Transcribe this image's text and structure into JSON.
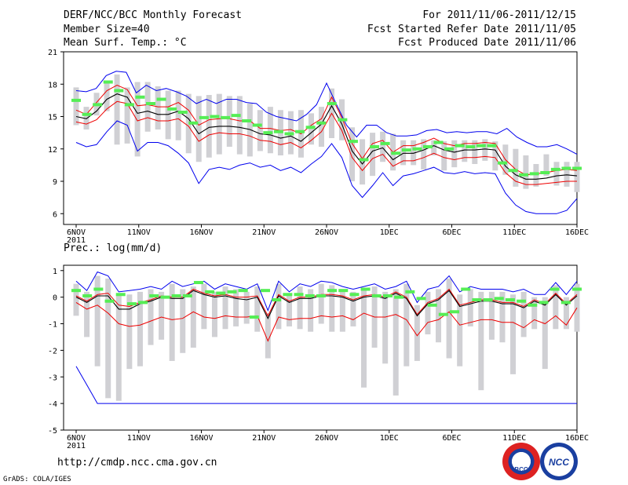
{
  "header": {
    "title": "DERF/NCC/BCC Monthly Forecast",
    "member_size": "Member Size=40",
    "variable": "Mean Surf. Temp.: °C",
    "period": "For 2011/11/06-2011/12/15",
    "started": "Fcst Started Refer Date 2011/11/05",
    "produced": "Fcst Produced Date 2011/11/06"
  },
  "footer": {
    "url": "http://cmdp.ncc.cma.gov.cn",
    "credit": "GrADS: COLA/IGES",
    "logo1_text": "BCC",
    "logo2_text": "NCC"
  },
  "colors": {
    "max": "#0000ee",
    "ensemble_mean": "#000000",
    "spread": "#ee0000",
    "bar": "#d0d0d4",
    "median": "#55ee55"
  },
  "chart_data": [
    {
      "type": "line",
      "title": "Mean Surf. Temp.: °C",
      "ylim": [
        5,
        21
      ],
      "yticks": [
        "6",
        "9",
        "12",
        "15",
        "18",
        "21"
      ],
      "xticks": [
        "6NOV",
        "11NOV",
        "16NOV",
        "21NOV",
        "26NOV",
        "1DEC",
        "6DEC",
        "11DEC",
        "16DEC"
      ],
      "xtick_year": "2011",
      "days": 40,
      "series": [
        {
          "name": "max",
          "color": "#0000ee",
          "values": [
            17.4,
            17.3,
            17.6,
            18.8,
            19.2,
            19.1,
            17.2,
            17.9,
            17.4,
            17.6,
            17.3,
            16.9,
            16.2,
            16.6,
            16.2,
            16.6,
            16.6,
            16.3,
            16.2,
            15.4,
            15.0,
            14.8,
            14.6,
            15.2,
            16.1,
            18.1,
            16.1,
            14.2,
            13.1,
            14.2,
            14.2,
            13.5,
            13.2,
            13.2,
            13.3,
            13.7,
            13.8,
            13.5,
            13.6,
            13.5,
            13.6,
            13.6,
            13.4,
            13.9,
            13.1,
            12.6,
            12.2,
            12.2,
            12.4,
            12.0,
            11.5
          ]
        },
        {
          "name": "upper",
          "color": "#ee0000",
          "values": [
            15.6,
            15.2,
            16.3,
            17.4,
            17.9,
            17.5,
            16.0,
            16.1,
            15.9,
            15.9,
            16.3,
            15.6,
            14.2,
            14.7,
            14.8,
            14.8,
            14.6,
            14.6,
            13.9,
            13.9,
            13.7,
            13.8,
            13.4,
            14.2,
            14.8,
            16.8,
            14.9,
            12.5,
            11.1,
            12.5,
            12.8,
            11.7,
            12.3,
            12.3,
            12.6,
            13.0,
            12.5,
            12.3,
            12.5,
            12.5,
            12.6,
            12.5,
            11.0,
            10.1,
            9.6,
            9.7,
            9.8,
            10.0,
            10.1,
            10.0
          ]
        },
        {
          "name": "ensemble_mean",
          "color": "#000000",
          "values": [
            15.0,
            14.8,
            15.5,
            16.6,
            17.1,
            16.8,
            15.3,
            15.5,
            15.2,
            15.2,
            15.5,
            14.8,
            13.4,
            14.0,
            14.1,
            14.1,
            14.0,
            13.8,
            13.4,
            13.3,
            13.0,
            13.2,
            12.7,
            13.5,
            14.3,
            16.0,
            14.3,
            11.8,
            10.6,
            11.8,
            12.1,
            11.0,
            11.6,
            11.6,
            11.9,
            12.3,
            11.9,
            11.7,
            11.9,
            11.9,
            12.0,
            11.9,
            10.4,
            9.6,
            9.2,
            9.2,
            9.3,
            9.5,
            9.6,
            9.5
          ]
        },
        {
          "name": "lower",
          "color": "#ee0000",
          "values": [
            14.5,
            14.3,
            14.7,
            15.7,
            16.4,
            16.2,
            14.6,
            14.9,
            14.6,
            14.6,
            14.8,
            14.1,
            12.7,
            13.3,
            13.5,
            13.4,
            13.4,
            13.2,
            12.8,
            12.7,
            12.4,
            12.6,
            12.1,
            12.8,
            13.6,
            15.3,
            13.7,
            11.2,
            10.0,
            11.1,
            11.5,
            10.4,
            10.9,
            10.9,
            11.2,
            11.6,
            11.2,
            11.0,
            11.2,
            11.2,
            11.3,
            11.2,
            9.8,
            9.0,
            8.7,
            8.7,
            8.8,
            8.9,
            9.0,
            9.0
          ]
        },
        {
          "name": "min",
          "color": "#0000ee",
          "values": [
            12.6,
            12.2,
            12.4,
            13.6,
            14.6,
            14.2,
            11.8,
            12.6,
            12.6,
            12.3,
            11.6,
            10.7,
            8.8,
            10.1,
            10.3,
            10.1,
            10.5,
            10.7,
            10.3,
            10.5,
            10.0,
            10.3,
            9.8,
            10.6,
            11.3,
            12.5,
            11.2,
            8.6,
            7.5,
            8.6,
            9.8,
            8.6,
            9.5,
            9.7,
            10.0,
            10.3,
            9.8,
            9.7,
            9.9,
            9.7,
            9.8,
            9.7,
            7.9,
            6.8,
            6.2,
            6.0,
            6.0,
            6.0,
            6.3,
            7.4
          ]
        },
        {
          "name": "bar_top",
          "color": "#d0d0d4",
          "values": [
            17.7,
            15.9,
            17.2,
            18.2,
            18.9,
            17.7,
            18.2,
            18.2,
            17.8,
            17.4,
            17.4,
            17.1,
            16.9,
            17.0,
            17.1,
            16.9,
            16.9,
            16.2,
            15.6,
            15.9,
            15.6,
            15.5,
            15.6,
            15.3,
            15.9,
            17.6,
            16.6,
            14.0,
            12.9,
            13.5,
            13.6,
            13.4,
            12.8,
            12.8,
            12.9,
            12.8,
            12.7,
            12.8,
            12.8,
            12.8,
            12.9,
            12.7,
            12.4,
            12.0,
            11.4,
            10.6,
            11.5,
            10.8,
            10.8,
            10.8
          ]
        },
        {
          "name": "bar_bottom",
          "color": "#d0d0d4",
          "values": [
            14.2,
            13.8,
            15.1,
            15.5,
            12.4,
            12.5,
            11.3,
            13.6,
            13.8,
            12.9,
            12.8,
            11.6,
            10.8,
            11.2,
            11.5,
            12.2,
            11.5,
            11.3,
            11.8,
            11.6,
            11.4,
            11.5,
            11.2,
            12.4,
            12.2,
            13.0,
            12.8,
            9.0,
            8.7,
            9.5,
            10.8,
            10.0,
            10.5,
            10.5,
            10.1,
            11.4,
            10.0,
            10.3,
            10.8,
            10.6,
            10.9,
            10.0,
            9.6,
            8.5,
            8.3,
            8.5,
            9.5,
            8.6,
            8.5,
            8.0
          ]
        },
        {
          "name": "median",
          "color": "#55ee55",
          "values": [
            16.5,
            15.2,
            16.1,
            18.2,
            17.4,
            16.1,
            16.8,
            16.2,
            16.6,
            15.7,
            15.4,
            14.4,
            14.9,
            15.0,
            14.9,
            15.1,
            14.6,
            14.2,
            13.5,
            13.6,
            13.4,
            13.6,
            14.0,
            14.4,
            16.2,
            14.7,
            12.7,
            11.0,
            12.2,
            12.5,
            11.6,
            11.9,
            12.0,
            12.2,
            12.6,
            12.0,
            12.3,
            12.2,
            12.3,
            12.3,
            10.7,
            10.0,
            9.6,
            9.7,
            9.8,
            10.1,
            10.2,
            10.2
          ]
        }
      ]
    },
    {
      "type": "line",
      "title": "Prec.: log(mm/d)",
      "ylim": [
        -5,
        1.2
      ],
      "yticks": [
        "-5",
        "-4",
        "-3",
        "-2",
        "-1",
        "0",
        "1"
      ],
      "xticks": [
        "6NOV",
        "11NOV",
        "16NOV",
        "21NOV",
        "26NOV",
        "1DEC",
        "6DEC",
        "11DEC",
        "16DEC"
      ],
      "xtick_year": "2011",
      "days": 40,
      "series": [
        {
          "name": "max",
          "color": "#0000ee",
          "values": [
            0.6,
            0.25,
            0.95,
            0.8,
            0.2,
            0.25,
            0.3,
            0.4,
            0.3,
            0.6,
            0.4,
            0.5,
            0.6,
            0.3,
            0.5,
            0.4,
            0.3,
            0.5,
            -0.5,
            0.6,
            0.2,
            0.5,
            0.4,
            0.6,
            0.55,
            0.4,
            0.3,
            0.4,
            0.5,
            0.3,
            0.4,
            0.6,
            -0.2,
            0.3,
            0.4,
            0.8,
            0.2,
            0.4,
            0.3,
            0.3,
            0.3,
            0.2,
            0.3,
            0.1,
            0.1,
            0.55,
            0.1,
            0.6
          ]
        },
        {
          "name": "upper",
          "color": "#ee0000",
          "values": [
            0.05,
            -0.15,
            0.1,
            0.15,
            -0.3,
            -0.35,
            -0.2,
            -0.1,
            0.05,
            0.0,
            0.0,
            0.3,
            0.15,
            0.05,
            0.1,
            0.0,
            0.0,
            0.05,
            -0.7,
            0.1,
            -0.15,
            0.0,
            0.0,
            0.1,
            0.1,
            0.05,
            -0.1,
            0.05,
            0.1,
            0.0,
            0.2,
            0.0,
            -0.65,
            -0.2,
            -0.05,
            0.3,
            -0.3,
            -0.2,
            -0.1,
            -0.1,
            -0.2,
            -0.2,
            -0.35,
            -0.1,
            -0.25,
            0.15,
            -0.25,
            0.1
          ]
        },
        {
          "name": "ensemble_mean",
          "color": "#000000",
          "values": [
            0.0,
            -0.2,
            0.05,
            0.05,
            -0.45,
            -0.45,
            -0.25,
            -0.15,
            0.0,
            -0.05,
            -0.05,
            0.25,
            0.1,
            0.0,
            0.05,
            -0.05,
            -0.1,
            0.0,
            -0.8,
            0.05,
            -0.2,
            -0.05,
            -0.05,
            0.05,
            0.05,
            0.0,
            -0.15,
            0.0,
            0.05,
            -0.05,
            0.15,
            -0.05,
            -0.7,
            -0.25,
            -0.1,
            0.25,
            -0.35,
            -0.25,
            -0.15,
            -0.15,
            -0.25,
            -0.25,
            -0.4,
            -0.15,
            -0.3,
            0.1,
            -0.3,
            0.05
          ]
        },
        {
          "name": "lower",
          "color": "#ee0000",
          "values": [
            -0.2,
            -0.45,
            -0.3,
            -0.6,
            -1.0,
            -1.1,
            -1.05,
            -0.9,
            -0.75,
            -0.85,
            -0.8,
            -0.55,
            -0.75,
            -0.8,
            -0.7,
            -0.75,
            -0.75,
            -0.7,
            -1.65,
            -0.75,
            -0.85,
            -0.8,
            -0.8,
            -0.7,
            -0.75,
            -0.7,
            -0.85,
            -0.6,
            -0.75,
            -0.75,
            -0.65,
            -0.85,
            -1.45,
            -0.95,
            -0.85,
            -0.55,
            -1.05,
            -0.95,
            -0.85,
            -0.85,
            -0.95,
            -0.95,
            -1.15,
            -0.85,
            -1.0,
            -0.7,
            -1.05,
            -0.4
          ]
        },
        {
          "name": "min",
          "color": "#0000ee",
          "values": [
            -2.6,
            -3.3,
            -4.0,
            -4.0,
            -4.0,
            -4.0,
            -4.0,
            -4.0,
            -4.0,
            -4.0,
            -4.0,
            -4.0,
            -4.0,
            -4.0,
            -4.0,
            -4.0,
            -4.0,
            -4.0,
            -4.0,
            -4.0,
            -4.0,
            -4.0,
            -4.0,
            -4.0,
            -4.0,
            -4.0,
            -4.0,
            -4.0,
            -4.0,
            -4.0,
            -4.0,
            -4.0,
            -4.0,
            -4.0,
            -4.0,
            -4.0,
            -4.0,
            -4.0,
            -4.0,
            -4.0,
            -4.0,
            -4.0,
            -4.0,
            -4.0,
            -4.0,
            -4.0,
            -4.0,
            -4.0
          ]
        },
        {
          "name": "bar_top",
          "color": "#d0d0d4",
          "values": [
            0.5,
            0.2,
            0.8,
            0.7,
            0.1,
            0.1,
            0.2,
            0.3,
            0.2,
            0.5,
            0.3,
            0.4,
            0.5,
            0.2,
            0.4,
            0.3,
            0.2,
            0.4,
            -0.6,
            0.5,
            0.1,
            0.4,
            0.3,
            0.5,
            0.45,
            0.3,
            0.2,
            0.3,
            0.4,
            0.2,
            0.3,
            0.5,
            -0.3,
            0.2,
            0.3,
            0.7,
            0.1,
            0.3,
            0.2,
            0.2,
            0.2,
            0.1,
            0.2,
            0.0,
            0.0,
            0.45,
            0.0,
            0.5
          ]
        },
        {
          "name": "bar_bottom",
          "color": "#d0d0d4",
          "values": [
            -0.7,
            -1.5,
            -2.6,
            -3.8,
            -3.9,
            -2.7,
            -2.6,
            -1.8,
            -1.6,
            -2.4,
            -2.1,
            -1.9,
            -1.2,
            -1.5,
            -1.2,
            -1.1,
            -1.0,
            -1.3,
            -2.3,
            -1.2,
            -1.1,
            -1.2,
            -1.3,
            -1.0,
            -1.3,
            -1.3,
            -1.1,
            -3.4,
            -1.9,
            -2.5,
            -3.7,
            -2.6,
            -2.4,
            -1.4,
            -1.7,
            -2.3,
            -2.6,
            -1.1,
            -3.5,
            -1.6,
            -1.7,
            -2.9,
            -1.5,
            -1.2,
            -2.7,
            -1.2,
            -1.2,
            -1.3
          ]
        },
        {
          "name": "median",
          "color": "#55ee55",
          "values": [
            0.25,
            0.05,
            0.3,
            -0.15,
            0.1,
            -0.25,
            -0.2,
            0.05,
            0.0,
            0.05,
            0.05,
            0.55,
            0.2,
            0.15,
            0.2,
            0.25,
            -0.75,
            0.25,
            -0.1,
            0.1,
            0.1,
            0.05,
            0.05,
            0.25,
            0.25,
            0.1,
            0.3,
            0.05,
            0.05,
            0.0,
            0.2,
            -0.05,
            -0.3,
            -0.65,
            -0.55,
            0.3,
            -0.1,
            -0.1,
            -0.05,
            -0.1,
            -0.15,
            -0.3,
            -0.2,
            0.3,
            -0.2,
            0.3
          ]
        }
      ]
    }
  ]
}
